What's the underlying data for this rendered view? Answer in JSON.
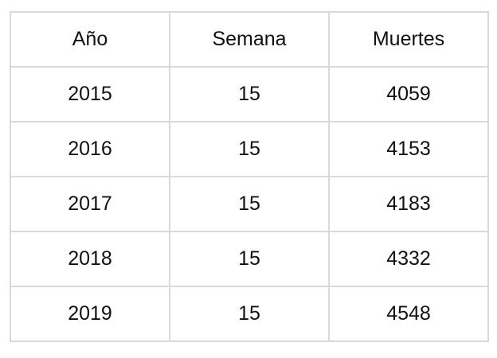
{
  "chart_data": {
    "type": "table",
    "columns": [
      "Año",
      "Semana",
      "Muertes"
    ],
    "rows": [
      [
        "2015",
        "15",
        "4059"
      ],
      [
        "2016",
        "15",
        "4153"
      ],
      [
        "2017",
        "15",
        "4183"
      ],
      [
        "2018",
        "15",
        "4332"
      ],
      [
        "2019",
        "15",
        "4548"
      ]
    ]
  },
  "colors": {
    "grid_line": "#d9d9d9",
    "text": "#111111",
    "background": "#ffffff"
  }
}
